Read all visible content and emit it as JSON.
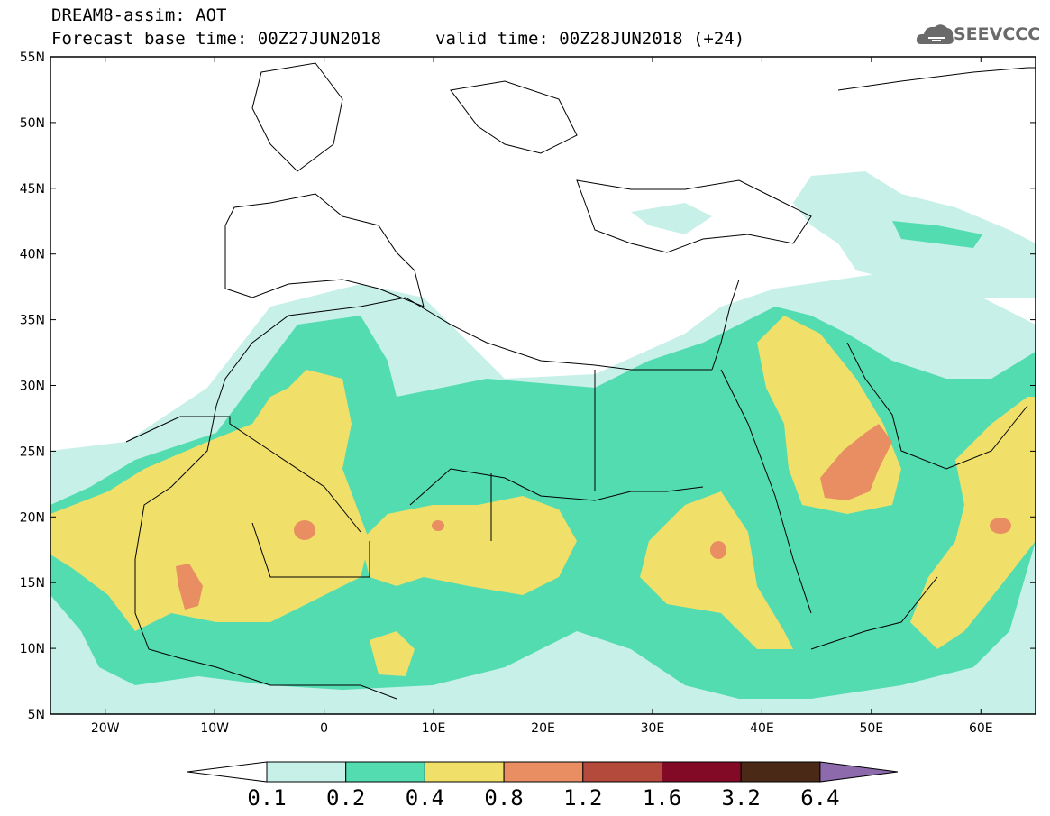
{
  "header": {
    "title": "DREAM8-assim: AOT",
    "base_time": "Forecast base time: 00Z27JUN2018",
    "valid_time": "valid time: 00Z28JUN2018 (+24)",
    "logo_text": "SEEVCCC"
  },
  "map": {
    "lon_range": [
      -25,
      65
    ],
    "lat_range": [
      5,
      55
    ],
    "lat_labels": [
      "55N",
      "50N",
      "45N",
      "40N",
      "35N",
      "30N",
      "25N",
      "20N",
      "15N",
      "10N",
      "5N"
    ],
    "lat_values": [
      55,
      50,
      45,
      40,
      35,
      30,
      25,
      20,
      15,
      10,
      5
    ],
    "lon_labels": [
      "20W",
      "10W",
      "0",
      "10E",
      "20E",
      "30E",
      "40E",
      "50E",
      "60E"
    ],
    "lon_values": [
      -20,
      -10,
      0,
      10,
      20,
      30,
      40,
      50,
      60
    ]
  },
  "colorbar": {
    "labels": [
      "0.1",
      "0.2",
      "0.4",
      "0.8",
      "1.2",
      "1.6",
      "3.2",
      "6.4"
    ],
    "colors": [
      "#c6f0e8",
      "#52dcb0",
      "#f0e06a",
      "#e88e62",
      "#b44a3c",
      "#820a26",
      "#4a2a16"
    ],
    "under_color": "#ffffff",
    "over_color": "#8c6aac"
  },
  "palette": {
    "very_low": "#c6f0e8",
    "low": "#52dcb0",
    "moderate": "#f0e06a",
    "high": "#e88e62"
  }
}
